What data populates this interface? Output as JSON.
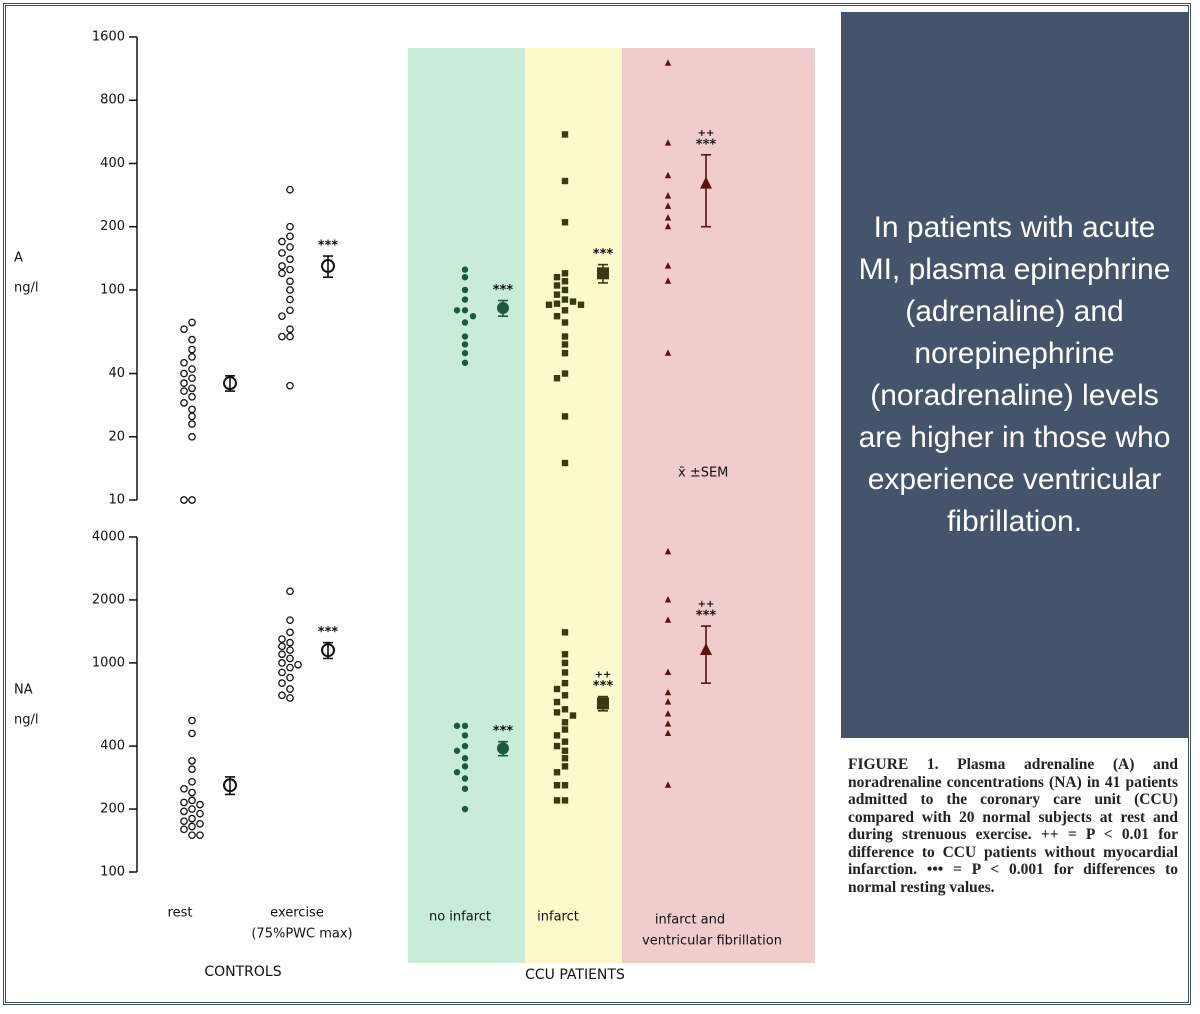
{
  "chart_data": [
    {
      "type": "dot",
      "ylabel": [
        "A",
        "ng/l"
      ],
      "log": true,
      "ylim": [
        10,
        1600
      ],
      "yticks": [
        10,
        20,
        40,
        100,
        200,
        400,
        800,
        1600
      ],
      "series": [
        {
          "marker": "circle-open",
          "color": "#111111",
          "values": [
            70,
            65,
            58,
            52,
            48,
            45,
            42,
            40,
            38,
            36,
            34,
            33,
            31,
            29,
            27,
            25,
            23,
            20,
            10,
            10
          ],
          "mean": 36,
          "sem": 3
        },
        {
          "marker": "circle-open",
          "color": "#111111",
          "values": [
            300,
            200,
            180,
            170,
            160,
            150,
            140,
            130,
            125,
            120,
            110,
            100,
            90,
            80,
            75,
            65,
            60,
            60,
            35
          ],
          "mean": 130,
          "sem": 15,
          "annotation": [
            "***"
          ]
        },
        {
          "marker": "circle",
          "color": "#1e5a3a",
          "values": [
            125,
            115,
            100,
            90,
            80,
            80,
            75,
            70,
            60,
            55,
            50,
            45
          ],
          "mean": 82,
          "sem": 7,
          "annotation": [
            "***"
          ]
        },
        {
          "marker": "square",
          "color": "#3a3a12",
          "values": [
            550,
            330,
            210,
            120,
            115,
            110,
            105,
            100,
            95,
            90,
            88,
            86,
            85,
            85,
            80,
            75,
            70,
            60,
            55,
            50,
            40,
            38,
            25,
            15
          ],
          "mean": 120,
          "sem": 12,
          "annotation": [
            "***"
          ]
        },
        {
          "marker": "triangle",
          "color": "#5a1212",
          "values": [
            1200,
            500,
            350,
            280,
            250,
            220,
            200,
            130,
            110,
            50
          ],
          "mean": 320,
          "sem": 120,
          "annotation": [
            "++",
            "***"
          ]
        }
      ]
    },
    {
      "type": "dot",
      "ylabel": [
        "NA",
        "ng/l"
      ],
      "log": true,
      "ylim": [
        100,
        4000
      ],
      "yticks": [
        100,
        200,
        400,
        1000,
        2000,
        4000
      ],
      "series": [
        {
          "marker": "circle-open",
          "color": "#111111",
          "values": [
            530,
            460,
            340,
            310,
            270,
            250,
            240,
            220,
            215,
            210,
            200,
            195,
            190,
            180,
            175,
            170,
            165,
            160,
            150,
            150
          ],
          "mean": 260,
          "sem": 25
        },
        {
          "marker": "circle-open",
          "color": "#111111",
          "values": [
            2200,
            1600,
            1400,
            1300,
            1250,
            1200,
            1150,
            1100,
            1050,
            1000,
            980,
            950,
            900,
            850,
            800,
            750,
            700,
            680
          ],
          "mean": 1150,
          "sem": 100,
          "annotation": [
            "***"
          ]
        },
        {
          "marker": "circle",
          "color": "#1e5a3a",
          "values": [
            500,
            500,
            450,
            400,
            380,
            350,
            320,
            300,
            280,
            250,
            200
          ],
          "mean": 390,
          "sem": 30,
          "annotation": [
            "***"
          ]
        },
        {
          "marker": "square",
          "color": "#3a3a12",
          "values": [
            1400,
            1100,
            1000,
            900,
            800,
            750,
            700,
            650,
            600,
            580,
            560,
            520,
            480,
            450,
            420,
            400,
            380,
            350,
            320,
            300,
            260,
            260,
            220,
            220
          ],
          "mean": 640,
          "sem": 50,
          "annotation": [
            "++",
            "***"
          ]
        },
        {
          "marker": "triangle",
          "color": "#5a1212",
          "values": [
            3400,
            2000,
            1600,
            900,
            720,
            650,
            570,
            510,
            460,
            260
          ],
          "mean": 1150,
          "sem": 350,
          "annotation": [
            "++",
            "***"
          ]
        }
      ]
    }
  ],
  "mean_note": "x̄ ±SEM",
  "group_labels": [
    [
      "rest"
    ],
    [
      "exercise",
      "(75%PWC max)"
    ],
    [
      "no infarct"
    ],
    [
      "infarct"
    ],
    [
      "infarct and",
      "ventricular fibrillation"
    ]
  ],
  "group_headers": [
    "CONTROLS",
    "CCU PATIENTS"
  ],
  "callout": "In patients with acute MI, plasma epinephrine (adrenaline) and norepinephrine (noradrenaline) levels are higher in those who experience ventricular fibrillation.",
  "caption": "FIGURE 1. Plasma adrenaline (A) and noradrenaline concentrations (NA) in 41 patients admitted to the coronary care unit (CCU) compared with 20 normal subjects at rest and during strenuous exercise. ++ = P < 0.01 for difference to CCU patients without myocardial infarction. ••• = P < 0.001 for differences to normal resting values."
}
